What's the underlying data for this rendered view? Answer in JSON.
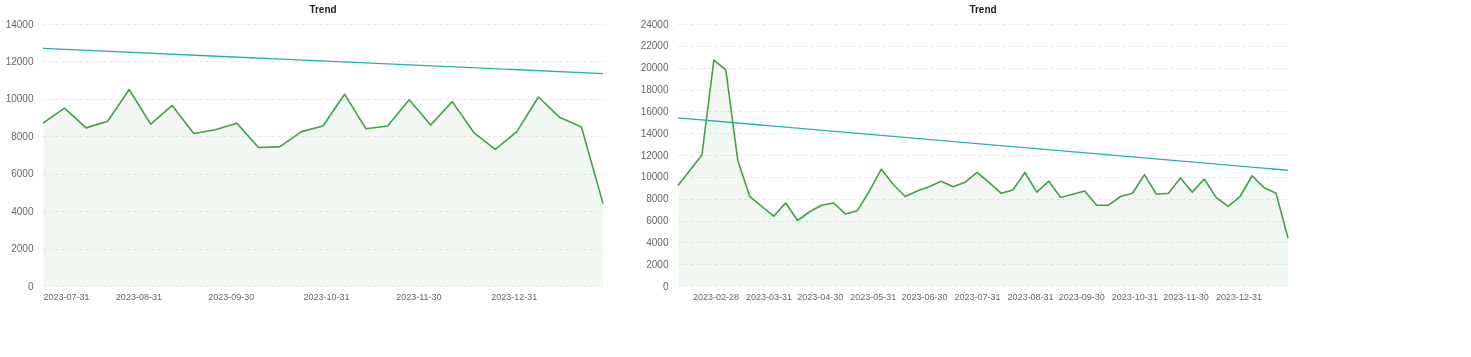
{
  "chart_data": [
    {
      "type": "area",
      "title": "Trend",
      "grid": "y",
      "x": [
        "2023-07-31",
        "2023-08-07",
        "2023-08-14",
        "2023-08-21",
        "2023-08-28",
        "2023-09-04",
        "2023-09-11",
        "2023-09-18",
        "2023-09-25",
        "2023-10-02",
        "2023-10-09",
        "2023-10-16",
        "2023-10-23",
        "2023-10-30",
        "2023-11-06",
        "2023-11-13",
        "2023-11-20",
        "2023-11-27",
        "2023-12-04",
        "2023-12-11",
        "2023-12-18",
        "2023-12-25",
        "2024-01-01",
        "2024-01-08",
        "2024-01-15",
        "2024-01-22",
        "2024-01-29"
      ],
      "series": [
        {
          "color": "#43a047",
          "values": [
            8700,
            9500,
            8450,
            8800,
            10500,
            8650,
            9650,
            8150,
            8350,
            8700,
            7400,
            7450,
            8250,
            8550,
            10250,
            8400,
            8550,
            9950,
            8600,
            9850,
            8200,
            7300,
            8250,
            10100,
            9000,
            8500,
            4400
          ]
        },
        {
          "type": "line",
          "color": "#26b0a8",
          "x": [
            "2023-07-31",
            "2024-01-29"
          ],
          "values": [
            12700,
            11350
          ]
        }
      ],
      "xlim": [
        "2023-07-31",
        "2024-01-29"
      ],
      "xticks": [
        "2023-07-31",
        "2023-08-31",
        "2023-09-30",
        "2023-10-31",
        "2023-11-30",
        "2023-12-31"
      ],
      "ylim": [
        0,
        14000
      ],
      "yticks": [
        0,
        2000,
        4000,
        6000,
        8000,
        10000,
        12000,
        14000
      ]
    },
    {
      "type": "area",
      "title": "Trend",
      "grid": "y",
      "x": [
        "2023-02-06",
        "2023-02-13",
        "2023-02-20",
        "2023-02-27",
        "2023-03-06",
        "2023-03-13",
        "2023-03-20",
        "2023-03-27",
        "2023-04-03",
        "2023-04-10",
        "2023-04-17",
        "2023-04-24",
        "2023-05-01",
        "2023-05-08",
        "2023-05-15",
        "2023-05-22",
        "2023-05-29",
        "2023-06-05",
        "2023-06-12",
        "2023-06-19",
        "2023-06-26",
        "2023-07-03",
        "2023-07-10",
        "2023-07-17",
        "2023-07-24",
        "2023-07-31",
        "2023-08-07",
        "2023-08-14",
        "2023-08-21",
        "2023-08-28",
        "2023-09-04",
        "2023-09-11",
        "2023-09-18",
        "2023-09-25",
        "2023-10-02",
        "2023-10-09",
        "2023-10-16",
        "2023-10-23",
        "2023-10-30",
        "2023-11-06",
        "2023-11-13",
        "2023-11-20",
        "2023-11-27",
        "2023-12-04",
        "2023-12-11",
        "2023-12-18",
        "2023-12-25",
        "2024-01-01",
        "2024-01-08",
        "2024-01-15",
        "2024-01-22",
        "2024-01-29"
      ],
      "series": [
        {
          "color": "#43a047",
          "values": [
            9200,
            10600,
            12000,
            20700,
            19800,
            11500,
            8200,
            7300,
            6400,
            7600,
            6000,
            6800,
            7400,
            7600,
            6600,
            6900,
            8700,
            10700,
            9300,
            8200,
            8700,
            9100,
            9600,
            9100,
            9500,
            10400,
            9500,
            8500,
            8800,
            10400,
            8600,
            9600,
            8100,
            8400,
            8700,
            7400,
            7400,
            8200,
            8500,
            10200,
            8400,
            8500,
            9900,
            8600,
            9800,
            8100,
            7300,
            8200,
            10100,
            9000,
            8500,
            4400
          ]
        },
        {
          "type": "line",
          "color": "#26b0a8",
          "x": [
            "2023-02-06",
            "2024-01-29"
          ],
          "values": [
            15400,
            10600
          ]
        }
      ],
      "xlim": [
        "2023-02-06",
        "2024-01-29"
      ],
      "xticks": [
        "2023-02-28",
        "2023-03-31",
        "2023-04-30",
        "2023-05-31",
        "2023-06-30",
        "2023-07-31",
        "2023-08-31",
        "2023-09-30",
        "2023-10-31",
        "2023-11-30",
        "2023-12-31"
      ],
      "ylim": [
        0,
        24000
      ],
      "yticks": [
        0,
        2000,
        4000,
        6000,
        8000,
        10000,
        12000,
        14000,
        16000,
        18000,
        20000,
        22000,
        24000
      ]
    }
  ]
}
